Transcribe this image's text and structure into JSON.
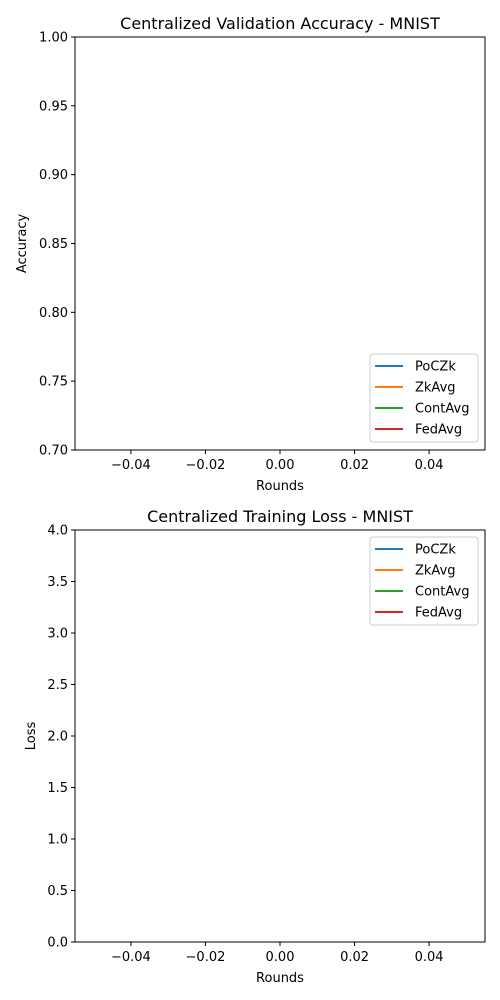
{
  "chart_data": [
    {
      "type": "line",
      "title": "Centralized Validation Accuracy - MNIST",
      "xlabel": "Rounds",
      "ylabel": "Accuracy",
      "xlim": [
        -0.055,
        0.055
      ],
      "ylim": [
        0.7,
        1.0
      ],
      "xticks": [
        -0.04,
        -0.02,
        0.0,
        0.02,
        0.04
      ],
      "xtick_labels": [
        "−0.04",
        "−0.02",
        "0.00",
        "0.02",
        "0.04"
      ],
      "yticks": [
        0.7,
        0.75,
        0.8,
        0.85,
        0.9,
        0.95,
        1.0
      ],
      "ytick_labels": [
        "0.70",
        "0.75",
        "0.80",
        "0.85",
        "0.90",
        "0.95",
        "1.00"
      ],
      "grid": false,
      "legend_position": "lower-right",
      "series": [
        {
          "name": "PoCZk",
          "color": "#1f77b4",
          "x": [],
          "y": []
        },
        {
          "name": "ZkAvg",
          "color": "#ff7f0e",
          "x": [],
          "y": []
        },
        {
          "name": "ContAvg",
          "color": "#2ca02c",
          "x": [],
          "y": []
        },
        {
          "name": "FedAvg",
          "color": "#d62728",
          "x": [],
          "y": []
        }
      ]
    },
    {
      "type": "line",
      "title": "Centralized Training Loss - MNIST",
      "xlabel": "Rounds",
      "ylabel": "Loss",
      "xlim": [
        -0.055,
        0.055
      ],
      "ylim": [
        0.0,
        4.0
      ],
      "xticks": [
        -0.04,
        -0.02,
        0.0,
        0.02,
        0.04
      ],
      "xtick_labels": [
        "−0.04",
        "−0.02",
        "0.00",
        "0.02",
        "0.04"
      ],
      "yticks": [
        0.0,
        0.5,
        1.0,
        1.5,
        2.0,
        2.5,
        3.0,
        3.5,
        4.0
      ],
      "ytick_labels": [
        "0.0",
        "0.5",
        "1.0",
        "1.5",
        "2.0",
        "2.5",
        "3.0",
        "3.5",
        "4.0"
      ],
      "grid": false,
      "legend_position": "upper-right",
      "series": [
        {
          "name": "PoCZk",
          "color": "#1f77b4",
          "x": [],
          "y": []
        },
        {
          "name": "ZkAvg",
          "color": "#ff7f0e",
          "x": [],
          "y": []
        },
        {
          "name": "ContAvg",
          "color": "#2ca02c",
          "x": [],
          "y": []
        },
        {
          "name": "FedAvg",
          "color": "#d62728",
          "x": [],
          "y": []
        }
      ]
    }
  ]
}
